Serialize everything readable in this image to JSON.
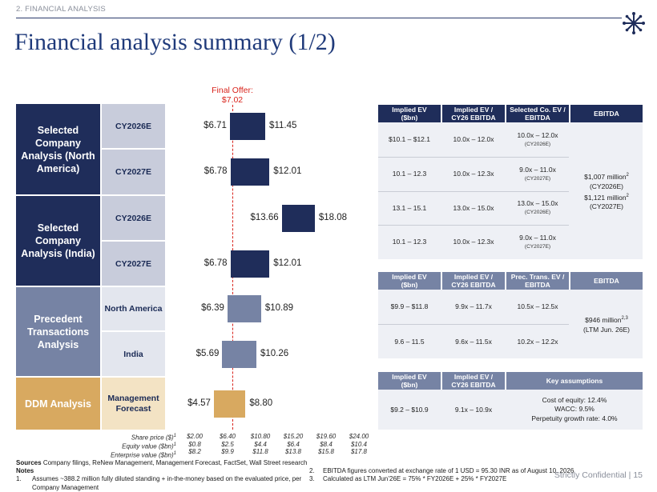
{
  "header": {
    "section": "2. FINANCIAL ANALYSIS",
    "title": "Financial analysis summary (1/2)",
    "logo_icon": "snowflake-logo-icon"
  },
  "colors": {
    "navy": "#1f2d5a",
    "slate": "#7683a4",
    "gold": "#d8a960",
    "sub_light": "#c8ccdb",
    "sub_gold": "#f3e3c4",
    "offer_line": "#d9241c"
  },
  "final_offer": {
    "label": "Final Offer:",
    "value": "$7.02"
  },
  "groups": [
    {
      "label": "Selected Company Analysis (North America)"
    },
    {
      "label": "Selected Company Analysis (India)"
    },
    {
      "label": "Precedent Transactions Analysis"
    },
    {
      "label": "DDM Analysis"
    }
  ],
  "rows": [
    {
      "sub": "CY2026E",
      "low_label": "$6.71",
      "high_label": "$11.45"
    },
    {
      "sub": "CY2027E",
      "low_label": "$6.78",
      "high_label": "$12.01"
    },
    {
      "sub": "CY2026E",
      "low_label": "$13.66",
      "high_label": "$18.08"
    },
    {
      "sub": "CY2027E",
      "low_label": "$6.78",
      "high_label": "$12.01"
    },
    {
      "sub": "North America",
      "low_label": "$6.39",
      "high_label": "$10.89"
    },
    {
      "sub": "India",
      "low_label": "$5.69",
      "high_label": "$10.26"
    },
    {
      "sub": "Management",
      "sub2": "Forecast",
      "low_label": "$4.57",
      "high_label": "$8.80"
    }
  ],
  "chart_data": {
    "type": "bar",
    "orientation": "horizontal-range",
    "categories": [
      "CY2026E (North America)",
      "CY2027E (North America)",
      "CY2026E (India)",
      "CY2027E (India)",
      "North America",
      "India",
      "Management Forecast"
    ],
    "series": [
      {
        "low": [
          6.71,
          6.78,
          13.66,
          6.78,
          6.39,
          5.69,
          4.57
        ],
        "high": [
          11.45,
          12.01,
          18.08,
          12.01,
          10.89,
          10.26,
          8.8
        ]
      }
    ],
    "reference_line": 7.02,
    "xlim": [
      2.0,
      24.0
    ],
    "axis": {
      "share_price_label": "Share price ($)",
      "equity_label": "Equity value ($bn)",
      "ev_label": "Enterprise value ($bn)",
      "share_price": [
        "$2.00",
        "$6.40",
        "$10.80",
        "$15.20",
        "$19.60",
        "$24.00"
      ],
      "equity": [
        "$0.8",
        "$2.5",
        "$4.4",
        "$6.4",
        "$8.4",
        "$10.4"
      ],
      "ev": [
        "$8.2",
        "$9.9",
        "$11.8",
        "$13.8",
        "$15.8",
        "$17.8"
      ],
      "footnote_mark": "1"
    }
  },
  "table1": {
    "headers": [
      "Implied EV ($bn)",
      "Implied EV / CY26 EBITDA",
      "Selected Co. EV / EBITDA",
      "EBITDA"
    ],
    "rows": [
      [
        "$10.1 – $12.1",
        "10.0x – 12.0x",
        "10.0x – 12.0x",
        "(CY2026E)"
      ],
      [
        "10.1 – 12.3",
        "10.0x – 12.3x",
        "9.0x – 11.0x",
        "(CY2027E)"
      ],
      [
        "13.1 – 15.1",
        "13.0x – 15.0x",
        "13.0x – 15.0x",
        "(CY2026E)"
      ],
      [
        "10.1 – 12.3",
        "10.0x – 12.3x",
        "9.0x – 11.0x",
        "(CY2027E)"
      ]
    ],
    "ebitda_lines": [
      "$1,007 million",
      "(CY2026E)",
      "$1,121 million",
      "(CY2027E)"
    ],
    "ebitda_sup": "2"
  },
  "table2": {
    "headers": [
      "Implied EV ($bn)",
      "Implied EV / CY26 EBITDA",
      "Prec. Trans. EV / EBITDA",
      "EBITDA"
    ],
    "rows": [
      [
        "$9.9 – $11.8",
        "9.9x – 11.7x",
        "10.5x – 12.5x"
      ],
      [
        "9.6 – 11.5",
        "9.6x – 11.5x",
        "10.2x – 12.2x"
      ]
    ],
    "ebitda_lines": [
      "$946 million",
      "(LTM Jun. 26E)"
    ],
    "ebitda_sup": "2,3"
  },
  "table3": {
    "headers": [
      "Implied EV ($bn)",
      "Implied EV / CY26 EBITDA",
      "Key assumptions"
    ],
    "row": [
      "$9.2 – $10.9",
      "9.1x – 10.9x"
    ],
    "assumptions": [
      "Cost of equity: 12.4%",
      "WACC: 9.5%",
      "Perpetuity growth rate: 4.0%"
    ]
  },
  "footer": {
    "sources_label": "Sources",
    "sources_text": "Company filings, ReNew Management, Management Forecast, FactSet, Wall Street research",
    "notes_label": "Notes",
    "note1_num": "1.",
    "note1": "Assumes ~388.2 million fully diluted standing + in-the-money  based on the evaluated price, per Company Management",
    "note2_num": "2.",
    "note2": "EBITDA figures converted at exchange rate of 1 USD = 95.30 INR as of August 10, 2026",
    "note3_num": "3.",
    "note3": "Calculated as LTM Jun’26E = 75% * FY2026E + 25% * FY2027E",
    "confidential": "Strictly Confidential |",
    "page": "15"
  }
}
